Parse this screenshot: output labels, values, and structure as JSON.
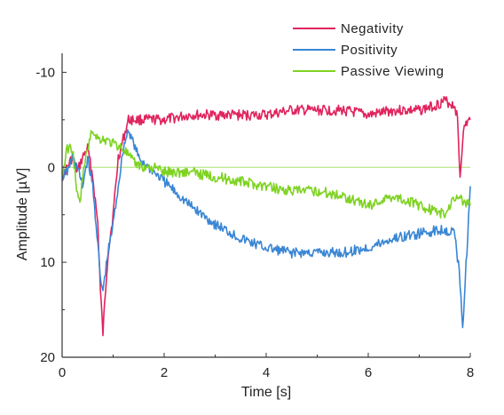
{
  "chart_data": {
    "type": "line",
    "title": "",
    "xlabel": "Time [s]",
    "ylabel": "Amplitude [µV]",
    "xlim": [
      0,
      8
    ],
    "ylim": [
      20,
      -12
    ],
    "y_axis_inverted": true,
    "x_ticks": [
      0,
      2,
      4,
      6,
      8
    ],
    "x_tick_labels": [
      "0",
      "2",
      "4",
      "6",
      "8"
    ],
    "y_ticks": [
      -10,
      0,
      10,
      20
    ],
    "y_tick_labels": [
      "-10",
      "0",
      "10",
      "20"
    ],
    "grid": false,
    "zero_reference_line": true,
    "legend_position": "top-right",
    "series": [
      {
        "name": "Negativity",
        "color": "#e0245e",
        "x": [
          0,
          0.1,
          0.2,
          0.3,
          0.4,
          0.5,
          0.6,
          0.7,
          0.75,
          0.8,
          0.85,
          0.9,
          1.0,
          1.1,
          1.2,
          1.3,
          1.4,
          1.6,
          2.0,
          2.5,
          3.0,
          3.5,
          4.0,
          4.5,
          5.0,
          5.5,
          6.0,
          6.5,
          7.0,
          7.3,
          7.5,
          7.7,
          7.75,
          7.8,
          7.85,
          7.9,
          8.0
        ],
        "y": [
          1,
          0,
          -1,
          0.5,
          -1,
          -2,
          1,
          6,
          13,
          17.5,
          13,
          9,
          5,
          -1,
          -3,
          -5,
          -5,
          -5,
          -5,
          -5.5,
          -5.5,
          -5.5,
          -5.5,
          -6,
          -6,
          -6,
          -5.5,
          -6,
          -6,
          -6.5,
          -7,
          -6.5,
          -5,
          1,
          -3,
          -4.5,
          -5
        ]
      },
      {
        "name": "Positivity",
        "color": "#3a86d4",
        "x": [
          0,
          0.1,
          0.2,
          0.3,
          0.4,
          0.5,
          0.6,
          0.7,
          0.75,
          0.8,
          0.85,
          0.9,
          1.0,
          1.1,
          1.2,
          1.3,
          1.5,
          1.8,
          2.0,
          2.5,
          3.0,
          3.5,
          4.0,
          4.5,
          5.0,
          5.5,
          6.0,
          6.5,
          7.0,
          7.5,
          7.7,
          7.8,
          7.85,
          7.9,
          8.0
        ],
        "y": [
          1,
          0.5,
          -1,
          0,
          2,
          -1,
          2,
          8,
          12,
          13,
          11,
          9,
          6,
          2,
          -2,
          -4,
          -1,
          0.5,
          1.5,
          4,
          6,
          7.5,
          8.5,
          9,
          9,
          9,
          8.5,
          7.5,
          7,
          6.5,
          7,
          12,
          17,
          12,
          2
        ]
      },
      {
        "name": "Passive Viewing",
        "color": "#7ed321",
        "x": [
          0,
          0.1,
          0.2,
          0.3,
          0.35,
          0.4,
          0.5,
          0.6,
          0.7,
          0.8,
          1.0,
          1.2,
          1.4,
          1.6,
          1.8,
          2.0,
          2.5,
          3.0,
          3.5,
          4.0,
          4.5,
          5.0,
          5.5,
          6.0,
          6.5,
          7.0,
          7.5,
          7.7,
          8.0
        ],
        "y": [
          1,
          -2,
          -2,
          3,
          4,
          1,
          -2,
          -4,
          -3,
          -3,
          -2.5,
          -2,
          -0.5,
          0,
          0,
          0.5,
          0.5,
          1,
          1.5,
          2,
          2.5,
          2.5,
          3,
          4,
          3,
          4,
          5,
          3,
          4
        ]
      }
    ]
  }
}
